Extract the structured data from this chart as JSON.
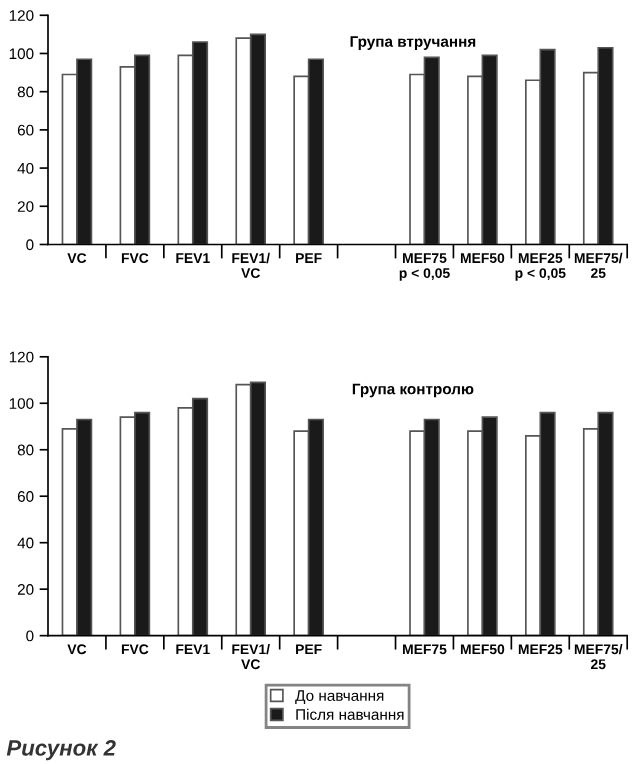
{
  "chart_data": [
    {
      "type": "bar",
      "title": "Група втручання",
      "categories": [
        "VC",
        "FVC",
        "FEV1",
        "FEV1/\nVC",
        "PEF",
        null,
        "MEF75\np < 0,05",
        "MEF50",
        "MEF25\np < 0,05",
        "MEF75/\n25"
      ],
      "series": [
        {
          "color": "#ffffff",
          "values": [
            89,
            93,
            99,
            108,
            88,
            null,
            89,
            88,
            86,
            90
          ]
        },
        {
          "color": "#1a1a1a",
          "values": [
            97,
            99,
            106,
            110,
            97,
            null,
            98,
            99,
            102,
            103
          ]
        }
      ],
      "ylim": [
        0,
        120
      ],
      "yticks": [
        0,
        20,
        40,
        60,
        80,
        100,
        120
      ],
      "grid": false,
      "legend": false
    },
    {
      "type": "bar",
      "title": "Група контролю",
      "categories": [
        "VC",
        "FVC",
        "FEV1",
        "FEV1/\nVC",
        "PEF",
        null,
        "MEF75",
        "MEF50",
        "MEF25",
        "MEF75/\n25"
      ],
      "series": [
        {
          "name": "До навчання",
          "color": "#ffffff",
          "values": [
            89,
            94,
            98,
            108,
            88,
            null,
            88,
            88,
            86,
            89
          ]
        },
        {
          "name": "Після навчання",
          "color": "#1a1a1a",
          "values": [
            93,
            96,
            102,
            109,
            93,
            null,
            93,
            94,
            96,
            96
          ]
        }
      ],
      "ylim": [
        0,
        120
      ],
      "yticks": [
        0,
        20,
        40,
        60,
        80,
        100,
        120
      ],
      "grid": false,
      "legend": "bottom",
      "annotations": [
        "Рисунок 2"
      ]
    }
  ]
}
